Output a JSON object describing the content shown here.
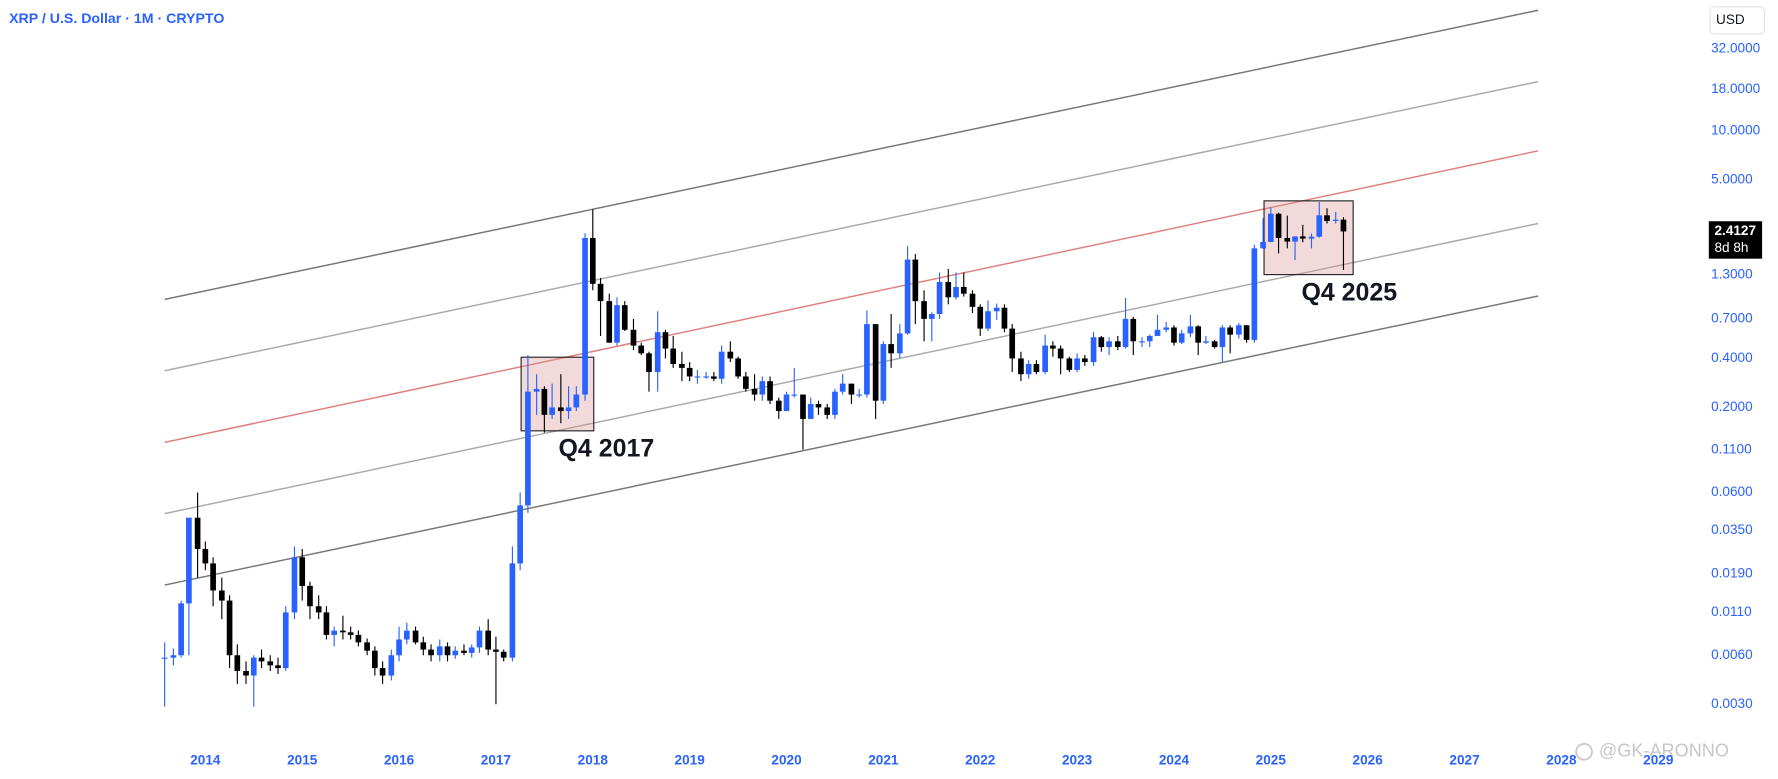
{
  "chart_data": {
    "type": "candlestick",
    "title": "XRP / U.S. Dollar · 1M · CRYPTO",
    "currency": "USD",
    "watermark": "@GK-ARONNO",
    "log_scale": true,
    "up_color": "#2962ff",
    "down_color": "#000000",
    "xlim": [
      2011.88,
      2029.44
    ],
    "xticks": [
      2014,
      2015,
      2016,
      2017,
      2018,
      2019,
      2020,
      2021,
      2022,
      2023,
      2024,
      2025,
      2026,
      2027,
      2028,
      2029
    ],
    "ylim": [
      0.00174,
      63.8
    ],
    "yticks": [
      {
        "value": 32,
        "label": "32.0000"
      },
      {
        "value": 18,
        "label": "18.0000"
      },
      {
        "value": 10,
        "label": "10.0000"
      },
      {
        "value": 5,
        "label": "5.0000"
      },
      {
        "value": 1.3,
        "label": "1.3000"
      },
      {
        "value": 0.7,
        "label": "0.7000"
      },
      {
        "value": 0.4,
        "label": "0.4000"
      },
      {
        "value": 0.2,
        "label": "0.2000"
      },
      {
        "value": 0.11,
        "label": "0.1100"
      },
      {
        "value": 0.06,
        "label": "0.0600"
      },
      {
        "value": 0.035,
        "label": "0.0350"
      },
      {
        "value": 0.019,
        "label": "0.0190"
      },
      {
        "value": 0.011,
        "label": "0.0110"
      },
      {
        "value": 0.006,
        "label": "0.0060"
      },
      {
        "value": 0.003,
        "label": "0.0030"
      }
    ],
    "last_price": 2.4127,
    "countdown": "8d 8h",
    "channel_lines": [
      {
        "x": [
          2013.58,
          2027.76
        ],
        "y": [
          0.923,
          55.2
        ],
        "color": "#777777"
      },
      {
        "x": [
          2013.58,
          2027.76
        ],
        "y": [
          0.336,
          20.1
        ],
        "color": "#aaaaaa"
      },
      {
        "x": [
          2013.58,
          2027.76
        ],
        "y": [
          0.122,
          7.55
        ],
        "color": "#e08080"
      },
      {
        "x": [
          2013.58,
          2027.76
        ],
        "y": [
          0.0445,
          2.7
        ],
        "color": "#aaaaaa"
      },
      {
        "x": [
          2013.58,
          2027.76
        ],
        "y": [
          0.0162,
          0.968
        ],
        "color": "#777777"
      }
    ],
    "boxes": [
      {
        "label": "Q4 2017",
        "x": [
          2017.26,
          2018.01
        ],
        "y": [
          0.1436,
          0.407
        ]
      },
      {
        "label": "Q4 2025",
        "x": [
          2024.93,
          2025.85
        ],
        "y": [
          1.31,
          3.72
        ]
      }
    ],
    "x": [
      2013.58,
      2013.67,
      2013.75,
      2013.83,
      2013.92,
      2014,
      2014.08,
      2014.17,
      2014.25,
      2014.33,
      2014.42,
      2014.5,
      2014.58,
      2014.67,
      2014.75,
      2014.83,
      2014.92,
      2015,
      2015.08,
      2015.17,
      2015.25,
      2015.33,
      2015.42,
      2015.5,
      2015.58,
      2015.67,
      2015.75,
      2015.83,
      2015.92,
      2016,
      2016.08,
      2016.17,
      2016.25,
      2016.33,
      2016.42,
      2016.5,
      2016.58,
      2016.67,
      2016.75,
      2016.83,
      2016.92,
      2017,
      2017.08,
      2017.17,
      2017.25,
      2017.33,
      2017.42,
      2017.5,
      2017.58,
      2017.67,
      2017.75,
      2017.83,
      2017.92,
      2018,
      2018.08,
      2018.17,
      2018.25,
      2018.33,
      2018.42,
      2018.5,
      2018.58,
      2018.67,
      2018.75,
      2018.83,
      2018.92,
      2019,
      2019.08,
      2019.17,
      2019.25,
      2019.33,
      2019.42,
      2019.5,
      2019.58,
      2019.67,
      2019.75,
      2019.83,
      2019.92,
      2020,
      2020.08,
      2020.17,
      2020.25,
      2020.33,
      2020.42,
      2020.5,
      2020.58,
      2020.67,
      2020.75,
      2020.83,
      2020.92,
      2021,
      2021.08,
      2021.17,
      2021.25,
      2021.33,
      2021.42,
      2021.5,
      2021.58,
      2021.67,
      2021.75,
      2021.83,
      2021.92,
      2022,
      2022.08,
      2022.17,
      2022.25,
      2022.33,
      2022.42,
      2022.5,
      2022.58,
      2022.67,
      2022.75,
      2022.83,
      2022.92,
      2023,
      2023.08,
      2023.17,
      2023.25,
      2023.33,
      2023.42,
      2023.5,
      2023.58,
      2023.67,
      2023.75,
      2023.83,
      2023.92,
      2024,
      2024.08,
      2024.17,
      2024.25,
      2024.33,
      2024.42,
      2024.5,
      2024.58,
      2024.67,
      2024.75,
      2024.83,
      2024.92,
      2025,
      2025.08,
      2025.17,
      2025.25,
      2025.33,
      2025.42,
      2025.5,
      2025.58,
      2025.67,
      2025.75
    ],
    "open": [
      0.0058,
      0.0058,
      0.006,
      0.0125,
      0.042,
      0.027,
      0.022,
      0.015,
      0.013,
      0.006,
      0.0048,
      0.0045,
      0.0058,
      0.0055,
      0.0052,
      0.005,
      0.011,
      0.024,
      0.016,
      0.012,
      0.011,
      0.008,
      0.0085,
      0.0083,
      0.008,
      0.0072,
      0.0064,
      0.005,
      0.0045,
      0.006,
      0.0075,
      0.0085,
      0.0072,
      0.0065,
      0.006,
      0.0068,
      0.006,
      0.0064,
      0.0062,
      0.0067,
      0.0085,
      0.0065,
      0.0063,
      0.0058,
      0.022,
      0.05,
      0.25,
      0.26,
      0.18,
      0.2,
      0.19,
      0.2,
      0.24,
      2.2,
      1.15,
      0.9,
      0.5,
      0.85,
      0.6,
      0.48,
      0.43,
      0.33,
      0.58,
      0.46,
      0.37,
      0.35,
      0.31,
      0.31,
      0.31,
      0.3,
      0.44,
      0.4,
      0.31,
      0.26,
      0.24,
      0.29,
      0.22,
      0.19,
      0.24,
      0.24,
      0.17,
      0.21,
      0.2,
      0.18,
      0.25,
      0.28,
      0.24,
      0.24,
      0.65,
      0.22,
      0.49,
      0.43,
      0.57,
      1.62,
      0.9,
      0.7,
      0.75,
      1.18,
      0.95,
      1.1,
      1.0,
      0.83,
      0.61,
      0.78,
      0.82,
      0.61,
      0.4,
      0.32,
      0.37,
      0.33,
      0.48,
      0.46,
      0.4,
      0.34,
      0.4,
      0.38,
      0.54,
      0.47,
      0.51,
      0.47,
      0.7,
      0.51,
      0.51,
      0.55,
      0.6,
      0.62,
      0.5,
      0.57,
      0.63,
      0.5,
      0.51,
      0.47,
      0.62,
      0.56,
      0.64,
      0.52,
      1.9,
      2.08,
      3.1,
      2.2,
      2.09,
      2.25,
      2.18,
      2.24,
      3.03,
      2.8,
      2.85
    ],
    "high": [
      0.0072,
      0.0066,
      0.013,
      0.042,
      0.06,
      0.03,
      0.024,
      0.018,
      0.014,
      0.007,
      0.0055,
      0.006,
      0.0065,
      0.006,
      0.0058,
      0.012,
      0.028,
      0.027,
      0.017,
      0.014,
      0.012,
      0.009,
      0.0105,
      0.009,
      0.0085,
      0.0076,
      0.0068,
      0.0055,
      0.0065,
      0.009,
      0.0095,
      0.009,
      0.0078,
      0.007,
      0.0075,
      0.0072,
      0.0068,
      0.007,
      0.007,
      0.009,
      0.01,
      0.0078,
      0.0065,
      0.028,
      0.06,
      0.42,
      0.32,
      0.27,
      0.28,
      0.32,
      0.27,
      0.27,
      2.35,
      3.3,
      1.25,
      1.0,
      0.95,
      0.9,
      0.7,
      0.5,
      0.44,
      0.78,
      0.6,
      0.55,
      0.44,
      0.38,
      0.34,
      0.33,
      0.33,
      0.48,
      0.51,
      0.41,
      0.33,
      0.32,
      0.31,
      0.31,
      0.23,
      0.25,
      0.35,
      0.24,
      0.23,
      0.22,
      0.21,
      0.26,
      0.32,
      0.28,
      0.26,
      0.79,
      0.65,
      0.51,
      0.75,
      0.65,
      1.96,
      1.75,
      1.05,
      0.77,
      1.35,
      1.42,
      1.35,
      1.35,
      1.05,
      0.86,
      0.91,
      0.87,
      0.86,
      0.65,
      0.44,
      0.39,
      0.39,
      0.56,
      0.51,
      0.48,
      0.41,
      0.43,
      0.42,
      0.58,
      0.55,
      0.54,
      0.55,
      0.94,
      0.72,
      0.54,
      0.56,
      0.74,
      0.67,
      0.64,
      0.6,
      0.74,
      0.64,
      0.55,
      0.52,
      0.64,
      0.64,
      0.66,
      0.64,
      2.0,
      2.91,
      3.4,
      3.15,
      3.02,
      2.25,
      2.65,
      2.34,
      3.66,
      3.35,
      3.18,
      2.95
    ],
    "low": [
      0.0029,
      0.0052,
      0.0058,
      0.006,
      0.018,
      0.02,
      0.012,
      0.01,
      0.005,
      0.004,
      0.004,
      0.0029,
      0.005,
      0.0048,
      0.0046,
      0.0048,
      0.01,
      0.013,
      0.01,
      0.01,
      0.0075,
      0.0068,
      0.0075,
      0.0075,
      0.0068,
      0.006,
      0.0045,
      0.004,
      0.0042,
      0.0055,
      0.007,
      0.007,
      0.006,
      0.0055,
      0.0055,
      0.0055,
      0.0057,
      0.006,
      0.0058,
      0.0062,
      0.006,
      0.003,
      0.0055,
      0.0055,
      0.02,
      0.045,
      0.18,
      0.14,
      0.17,
      0.16,
      0.17,
      0.19,
      0.22,
      1.05,
      0.55,
      0.5,
      0.48,
      0.59,
      0.45,
      0.42,
      0.25,
      0.25,
      0.4,
      0.35,
      0.29,
      0.29,
      0.28,
      0.3,
      0.29,
      0.28,
      0.38,
      0.3,
      0.25,
      0.22,
      0.22,
      0.21,
      0.17,
      0.19,
      0.23,
      0.11,
      0.17,
      0.18,
      0.17,
      0.17,
      0.24,
      0.21,
      0.23,
      0.23,
      0.17,
      0.21,
      0.35,
      0.4,
      0.56,
      0.65,
      0.51,
      0.51,
      0.7,
      0.86,
      0.92,
      0.96,
      0.76,
      0.55,
      0.59,
      0.69,
      0.58,
      0.33,
      0.29,
      0.3,
      0.32,
      0.32,
      0.41,
      0.32,
      0.33,
      0.33,
      0.36,
      0.36,
      0.44,
      0.42,
      0.45,
      0.46,
      0.42,
      0.47,
      0.47,
      0.55,
      0.58,
      0.48,
      0.49,
      0.54,
      0.42,
      0.49,
      0.46,
      0.38,
      0.43,
      0.53,
      0.5,
      0.5,
      1.89,
      2.07,
      1.77,
      1.9,
      1.61,
      2.07,
      1.9,
      2.21,
      2.7,
      2.7,
      1.4
    ],
    "close": [
      0.0058,
      0.006,
      0.0125,
      0.042,
      0.027,
      0.022,
      0.015,
      0.013,
      0.006,
      0.0048,
      0.0045,
      0.0058,
      0.0055,
      0.0052,
      0.005,
      0.011,
      0.024,
      0.016,
      0.012,
      0.011,
      0.008,
      0.0085,
      0.0083,
      0.008,
      0.0072,
      0.0064,
      0.005,
      0.0045,
      0.006,
      0.0075,
      0.0085,
      0.0072,
      0.0065,
      0.006,
      0.0068,
      0.006,
      0.0064,
      0.0062,
      0.0067,
      0.0085,
      0.0065,
      0.0063,
      0.0058,
      0.022,
      0.05,
      0.25,
      0.26,
      0.18,
      0.2,
      0.19,
      0.2,
      0.24,
      2.2,
      1.15,
      0.9,
      0.5,
      0.85,
      0.6,
      0.48,
      0.43,
      0.33,
      0.58,
      0.46,
      0.37,
      0.35,
      0.31,
      0.31,
      0.31,
      0.3,
      0.44,
      0.4,
      0.31,
      0.26,
      0.24,
      0.29,
      0.22,
      0.19,
      0.24,
      0.24,
      0.17,
      0.21,
      0.2,
      0.18,
      0.25,
      0.28,
      0.24,
      0.24,
      0.65,
      0.22,
      0.49,
      0.43,
      0.57,
      1.62,
      0.9,
      0.7,
      0.75,
      1.18,
      0.95,
      1.1,
      1.0,
      0.83,
      0.61,
      0.78,
      0.82,
      0.61,
      0.4,
      0.32,
      0.37,
      0.33,
      0.48,
      0.46,
      0.4,
      0.34,
      0.4,
      0.38,
      0.54,
      0.47,
      0.51,
      0.47,
      0.7,
      0.51,
      0.51,
      0.55,
      0.6,
      0.62,
      0.5,
      0.57,
      0.63,
      0.5,
      0.51,
      0.47,
      0.62,
      0.56,
      0.64,
      0.52,
      1.9,
      2.08,
      3.1,
      2.2,
      2.09,
      2.25,
      2.18,
      2.24,
      3.03,
      2.8,
      2.85,
      2.4127
    ]
  }
}
